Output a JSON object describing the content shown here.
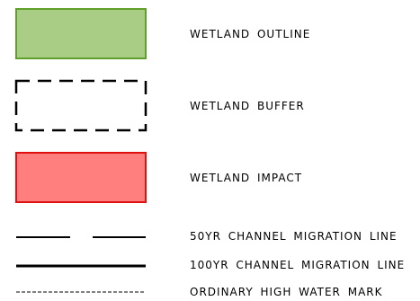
{
  "legend": {
    "items": [
      {
        "label": "WETLAND OUTLINE",
        "symbol": "green-filled-box",
        "fill": "#a9cd84",
        "stroke": "#5fa02a"
      },
      {
        "label": "WETLAND BUFFER",
        "symbol": "dashed-box",
        "stroke": "#000000"
      },
      {
        "label": "WETLAND IMPACT",
        "symbol": "red-filled-box",
        "fill": "#ff7f7f",
        "stroke": "#e01010"
      },
      {
        "label": "50YR CHANNEL MIGRATION LINE",
        "symbol": "long-dash-line",
        "stroke": "#000000"
      },
      {
        "label": "100YR CHANNEL MIGRATION LINE",
        "symbol": "solid-thick-line",
        "stroke": "#000000"
      },
      {
        "label": "ORDINARY HIGH WATER MARK",
        "symbol": "fine-dash-line",
        "stroke": "#000000"
      }
    ]
  }
}
